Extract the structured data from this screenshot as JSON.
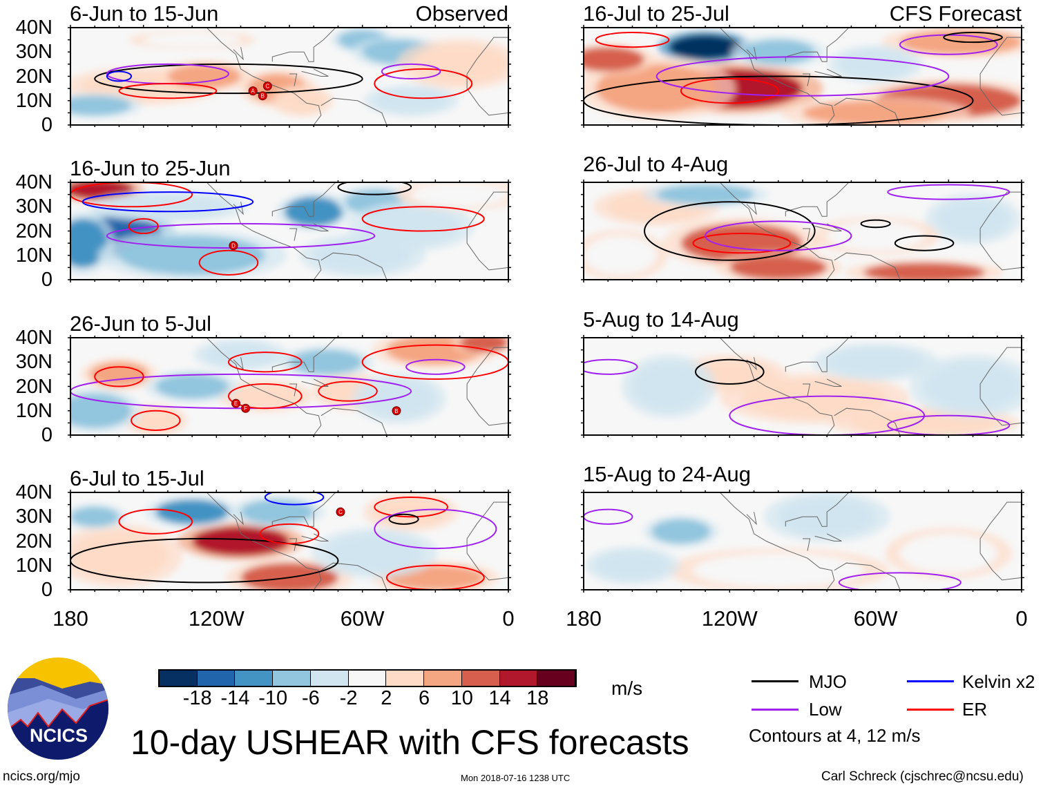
{
  "chart_data": {
    "type": "heatmap",
    "title": "10-day USHEAR with CFS forecasts",
    "units": "m/s",
    "x_ticks": [
      "180",
      "120W",
      "60W",
      "0"
    ],
    "x_tick_values": [
      -180,
      -120,
      -60,
      0
    ],
    "y_ticks": [
      "40N",
      "30N",
      "20N",
      "10N",
      "0"
    ],
    "y_tick_values": [
      40,
      30,
      20,
      10,
      0
    ],
    "xlim": [
      -180,
      0
    ],
    "ylim": [
      0,
      40
    ],
    "column_labels": {
      "left": "Observed",
      "right": "CFS Forecast"
    },
    "colorbar": {
      "labels": [
        "-18",
        "-14",
        "-10",
        "-6",
        "-2",
        "2",
        "6",
        "10",
        "14",
        "18"
      ],
      "levels": [
        -18,
        -14,
        -10,
        -6,
        -2,
        2,
        6,
        10,
        14,
        18
      ],
      "colors": [
        "#053061",
        "#2166ac",
        "#4393c3",
        "#92c5de",
        "#d1e5f0",
        "#f7f7f7",
        "#fddbc7",
        "#f4a582",
        "#d6604d",
        "#b2182b",
        "#67001f"
      ]
    },
    "legend": {
      "items": [
        {
          "label": "MJO",
          "color": "#000000"
        },
        {
          "label": "Kelvin x2",
          "color": "#0000ff"
        },
        {
          "label": "Low",
          "color": "#a020f0"
        },
        {
          "label": "ER",
          "color": "#ff0000"
        }
      ],
      "note": "Contours at 4, 12 m/s"
    },
    "panels": [
      {
        "title": "6-Jun to 15-Jun",
        "tag": "Observed",
        "col": 0,
        "row": 0,
        "field": [
          [
            -150,
            16,
            25,
            6,
            6
          ],
          [
            -125,
            20,
            15,
            5,
            10
          ],
          [
            -95,
            15,
            12,
            6,
            10
          ],
          [
            -85,
            10,
            10,
            5,
            6
          ],
          [
            -60,
            35,
            10,
            4,
            -6
          ],
          [
            -45,
            30,
            15,
            5,
            -6
          ],
          [
            -170,
            8,
            15,
            4,
            -6
          ],
          [
            -20,
            25,
            20,
            8,
            6
          ],
          [
            -40,
            10,
            15,
            5,
            -2
          ],
          [
            -130,
            35,
            20,
            3,
            2
          ]
        ],
        "contours": [
          [
            "MJO",
            -115,
            19,
            55,
            6
          ],
          [
            "Low",
            -140,
            21,
            25,
            4
          ],
          [
            "ER",
            -140,
            14,
            20,
            3
          ],
          [
            "ER",
            -35,
            17,
            20,
            6
          ],
          [
            "Low",
            -40,
            22,
            12,
            3
          ],
          [
            "Kelvin",
            -160,
            20,
            5,
            2
          ]
        ],
        "storms": [
          [
            "A",
            -105,
            14
          ],
          [
            "C",
            -99,
            16
          ],
          [
            "B",
            -101,
            12
          ]
        ]
      },
      {
        "title": "16-Jun to 25-Jun",
        "tag": "",
        "col": 0,
        "row": 1,
        "field": [
          [
            -168,
            37,
            14,
            4,
            18
          ],
          [
            -160,
            18,
            18,
            8,
            -14
          ],
          [
            -175,
            15,
            10,
            10,
            -10
          ],
          [
            -80,
            28,
            12,
            6,
            -10
          ],
          [
            -55,
            32,
            12,
            5,
            -6
          ],
          [
            -140,
            30,
            25,
            5,
            -2
          ],
          [
            -40,
            22,
            20,
            8,
            -2
          ],
          [
            -130,
            10,
            30,
            8,
            -6
          ],
          [
            -60,
            10,
            20,
            7,
            -2
          ],
          [
            -20,
            35,
            20,
            5,
            2
          ]
        ],
        "contours": [
          [
            "ER",
            -155,
            35,
            25,
            5
          ],
          [
            "Kelvin",
            -140,
            32,
            35,
            4
          ],
          [
            "Low",
            -110,
            18,
            55,
            5
          ],
          [
            "ER",
            -35,
            25,
            25,
            5
          ],
          [
            "MJO",
            -55,
            38,
            15,
            3
          ],
          [
            "ER",
            -150,
            22,
            6,
            3
          ],
          [
            "ER",
            -115,
            7,
            12,
            5
          ]
        ],
        "storms": [
          [
            "D",
            -113,
            14
          ]
        ]
      },
      {
        "title": "26-Jun to 5-Jul",
        "tag": "",
        "col": 0,
        "row": 2,
        "field": [
          [
            -30,
            35,
            20,
            6,
            10
          ],
          [
            -10,
            38,
            10,
            4,
            14
          ],
          [
            -160,
            25,
            12,
            5,
            10
          ],
          [
            -100,
            16,
            15,
            5,
            6
          ],
          [
            -65,
            18,
            12,
            6,
            6
          ],
          [
            -145,
            6,
            10,
            5,
            6
          ],
          [
            -130,
            20,
            15,
            5,
            -6
          ],
          [
            -170,
            10,
            15,
            7,
            -6
          ],
          [
            -45,
            15,
            15,
            8,
            -2
          ],
          [
            -75,
            30,
            15,
            5,
            -6
          ],
          [
            -110,
            33,
            15,
            5,
            -2
          ]
        ],
        "contours": [
          [
            "ER",
            -30,
            30,
            30,
            7
          ],
          [
            "Low",
            -110,
            18,
            70,
            7
          ],
          [
            "ER",
            -160,
            24,
            10,
            4
          ],
          [
            "ER",
            -100,
            16,
            15,
            5
          ],
          [
            "ER",
            -66,
            18,
            12,
            4
          ],
          [
            "ER",
            -145,
            6,
            10,
            4
          ],
          [
            "ER",
            -100,
            30,
            15,
            4
          ],
          [
            "Low",
            -30,
            28,
            12,
            3
          ]
        ],
        "storms": [
          [
            "E",
            -112,
            13
          ],
          [
            "F",
            -108,
            11
          ],
          [
            "B",
            -46,
            10
          ]
        ]
      },
      {
        "title": "6-Jul to 15-Jul",
        "tag": "",
        "col": 0,
        "row": 3,
        "field": [
          [
            -110,
            20,
            20,
            6,
            18
          ],
          [
            -160,
            14,
            20,
            10,
            6
          ],
          [
            -90,
            5,
            20,
            6,
            14
          ],
          [
            -130,
            32,
            15,
            5,
            -10
          ],
          [
            -95,
            32,
            15,
            5,
            -6
          ],
          [
            -40,
            32,
            15,
            6,
            6
          ],
          [
            -30,
            5,
            20,
            5,
            10
          ],
          [
            -170,
            30,
            10,
            4,
            -6
          ],
          [
            -55,
            15,
            20,
            8,
            -2
          ]
        ],
        "contours": [
          [
            "MJO",
            -125,
            12,
            55,
            9
          ],
          [
            "ER",
            -145,
            28,
            15,
            5
          ],
          [
            "ER",
            -40,
            34,
            15,
            4
          ],
          [
            "Kelvin",
            -88,
            38,
            12,
            3
          ],
          [
            "ER",
            -90,
            23,
            12,
            4
          ],
          [
            "Low",
            -30,
            25,
            25,
            8
          ],
          [
            "ER",
            -30,
            5,
            20,
            5
          ],
          [
            "MJO",
            -43,
            29,
            6,
            2
          ]
        ],
        "storms": [
          [
            "C",
            -69,
            32
          ]
        ]
      },
      {
        "title": "16-Jul to 25-Jul",
        "tag": "CFS Forecast",
        "col": 1,
        "row": 0,
        "field": [
          [
            -118,
            15,
            28,
            8,
            18
          ],
          [
            -130,
            32,
            15,
            5,
            -18
          ],
          [
            -150,
            15,
            25,
            10,
            10
          ],
          [
            -30,
            10,
            30,
            7,
            14
          ],
          [
            -170,
            27,
            15,
            5,
            14
          ],
          [
            -25,
            34,
            25,
            5,
            10
          ],
          [
            -60,
            5,
            30,
            5,
            10
          ],
          [
            -100,
            30,
            15,
            5,
            -6
          ],
          [
            -60,
            25,
            15,
            6,
            -2
          ]
        ],
        "contours": [
          [
            "MJO",
            -100,
            10,
            80,
            10
          ],
          [
            "ER",
            -120,
            14,
            20,
            5
          ],
          [
            "Low",
            -90,
            20,
            60,
            8
          ],
          [
            "Low",
            -30,
            33,
            20,
            4
          ],
          [
            "ER",
            -160,
            35,
            15,
            3
          ],
          [
            "MJO",
            -20,
            36,
            12,
            2
          ]
        ],
        "storms": []
      },
      {
        "title": "26-Jul to 4-Aug",
        "tag": "",
        "col": 1,
        "row": 1,
        "field": [
          [
            -115,
            15,
            25,
            8,
            14
          ],
          [
            -150,
            30,
            20,
            6,
            6
          ],
          [
            -40,
            3,
            25,
            4,
            14
          ],
          [
            -100,
            5,
            20,
            5,
            14
          ],
          [
            -130,
            35,
            20,
            4,
            -6
          ],
          [
            -20,
            25,
            15,
            8,
            -2
          ],
          [
            -60,
            18,
            20,
            6,
            2
          ],
          [
            -165,
            10,
            15,
            8,
            2
          ]
        ],
        "contours": [
          [
            "MJO",
            -120,
            20,
            35,
            12
          ],
          [
            "ER",
            -115,
            15,
            20,
            4
          ],
          [
            "Low",
            -100,
            18,
            30,
            6
          ],
          [
            "MJO",
            -40,
            15,
            12,
            3
          ],
          [
            "MJO",
            -60,
            23,
            6,
            1.5
          ],
          [
            "Low",
            -30,
            36,
            25,
            3
          ]
        ],
        "storms": []
      },
      {
        "title": "5-Aug to 14-Aug",
        "tag": "",
        "col": 1,
        "row": 2,
        "field": [
          [
            -120,
            25,
            18,
            6,
            6
          ],
          [
            -85,
            15,
            30,
            8,
            6
          ],
          [
            -40,
            5,
            30,
            5,
            6
          ],
          [
            -145,
            20,
            15,
            10,
            -2
          ],
          [
            -60,
            30,
            20,
            6,
            -2
          ],
          [
            -20,
            20,
            20,
            10,
            -2
          ]
        ],
        "contours": [
          [
            "MJO",
            -120,
            26,
            14,
            5
          ],
          [
            "Low",
            -80,
            8,
            40,
            8
          ],
          [
            "Low",
            -30,
            4,
            25,
            4
          ],
          [
            "Low",
            -170,
            28,
            12,
            3
          ]
        ],
        "storms": []
      },
      {
        "title": "15-Aug to 24-Aug",
        "tag": "",
        "col": 1,
        "row": 3,
        "field": [
          [
            -140,
            24,
            12,
            5,
            -6
          ],
          [
            -100,
            8,
            35,
            7,
            2
          ],
          [
            -30,
            15,
            20,
            8,
            2
          ],
          [
            -80,
            30,
            20,
            8,
            -2
          ],
          [
            -160,
            10,
            15,
            6,
            -2
          ]
        ],
        "contours": [
          [
            "Low",
            -50,
            3,
            25,
            4
          ],
          [
            "Low",
            -170,
            30,
            10,
            3
          ]
        ],
        "storms": []
      }
    ]
  },
  "footer": {
    "logo_text": "NCICS",
    "site": "ncics.org/mjo",
    "timestamp": "Mon 2018-07-16 1238 UTC",
    "author": "Carl Schreck (cjschrec@ncsu.edu)"
  }
}
